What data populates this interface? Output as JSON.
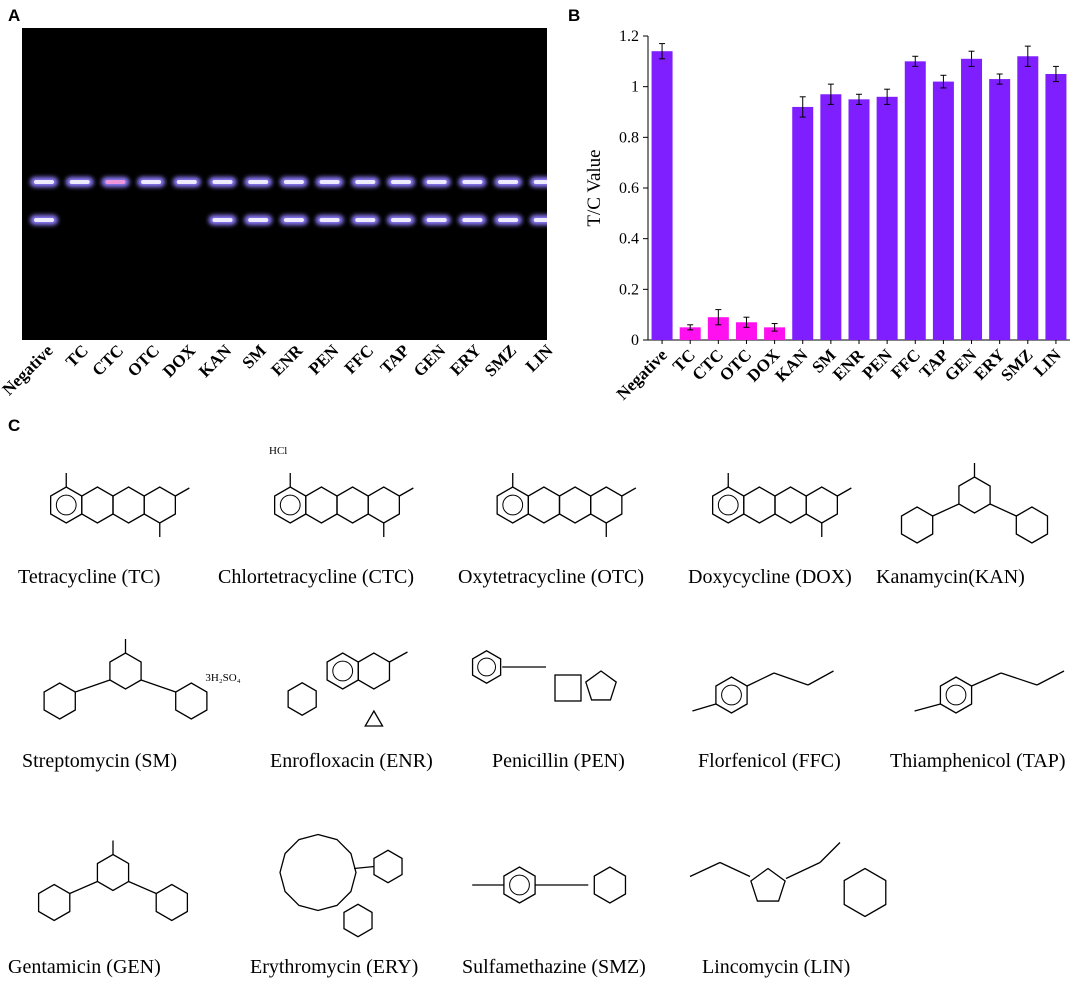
{
  "panels": {
    "a": "A",
    "b": "B",
    "c": "C"
  },
  "gel": {
    "lanes": [
      "Negative",
      "TC",
      "CTC",
      "OTC",
      "DOX",
      "KAN",
      "SM",
      "ENR",
      "PEN",
      "FFC",
      "TAP",
      "GEN",
      "ERY",
      "SMZ",
      "LIN"
    ],
    "test_band_present": [
      true,
      false,
      false,
      false,
      false,
      true,
      true,
      true,
      true,
      true,
      true,
      true,
      true,
      true,
      true
    ],
    "colors": {
      "background": "#000000",
      "band": "#8f7dff",
      "band_core": "#ffffff",
      "ctc_tint": "#ff9bd6"
    }
  },
  "chart_data": {
    "type": "bar",
    "categories": [
      "Negative",
      "TC",
      "CTC",
      "OTC",
      "DOX",
      "KAN",
      "SM",
      "ENR",
      "PEN",
      "FFC",
      "TAP",
      "GEN",
      "ERY",
      "SMZ",
      "LIN"
    ],
    "values": [
      1.14,
      0.05,
      0.09,
      0.07,
      0.05,
      0.92,
      0.97,
      0.95,
      0.96,
      1.1,
      1.02,
      1.11,
      1.03,
      1.12,
      1.05
    ],
    "errors": [
      0.03,
      0.01,
      0.03,
      0.02,
      0.015,
      0.04,
      0.04,
      0.02,
      0.03,
      0.02,
      0.025,
      0.03,
      0.02,
      0.04,
      0.03
    ],
    "bar_colors": [
      "#7f1fff",
      "#ff10ee",
      "#ff10ee",
      "#ff10ee",
      "#ff10ee",
      "#7f1fff",
      "#7f1fff",
      "#7f1fff",
      "#7f1fff",
      "#7f1fff",
      "#7f1fff",
      "#7f1fff",
      "#7f1fff",
      "#7f1fff",
      "#7f1fff"
    ],
    "ylabel": "T/C Value",
    "ylim": [
      0,
      1.2
    ],
    "yticks": [
      "0",
      "0.2",
      "0.4",
      "0.6",
      "0.8",
      "1",
      "1.2"
    ],
    "grid": false
  },
  "structures": [
    {
      "name": "Tetracycline (TC)",
      "annotation": ""
    },
    {
      "name": "Chlortetracycline (CTC)",
      "annotation": "HCl"
    },
    {
      "name": "Oxytetracycline (OTC)",
      "annotation": ""
    },
    {
      "name": "Doxycycline (DOX)",
      "annotation": ""
    },
    {
      "name": "Kanamycin(KAN)",
      "annotation": ""
    },
    {
      "name": "Streptomycin (SM)",
      "annotation": "3H₂SO₄"
    },
    {
      "name": "Enrofloxacin (ENR)",
      "annotation": ""
    },
    {
      "name": "Penicillin (PEN)",
      "annotation": ""
    },
    {
      "name": "Florfenicol (FFC)",
      "annotation": ""
    },
    {
      "name": "Thiamphenicol (TAP)",
      "annotation": ""
    },
    {
      "name": "Gentamicin (GEN)",
      "annotation": ""
    },
    {
      "name": "Erythromycin (ERY)",
      "annotation": ""
    },
    {
      "name": "Sulfamethazine (SMZ)",
      "annotation": ""
    },
    {
      "name": "Lincomycin (LIN)",
      "annotation": ""
    }
  ]
}
